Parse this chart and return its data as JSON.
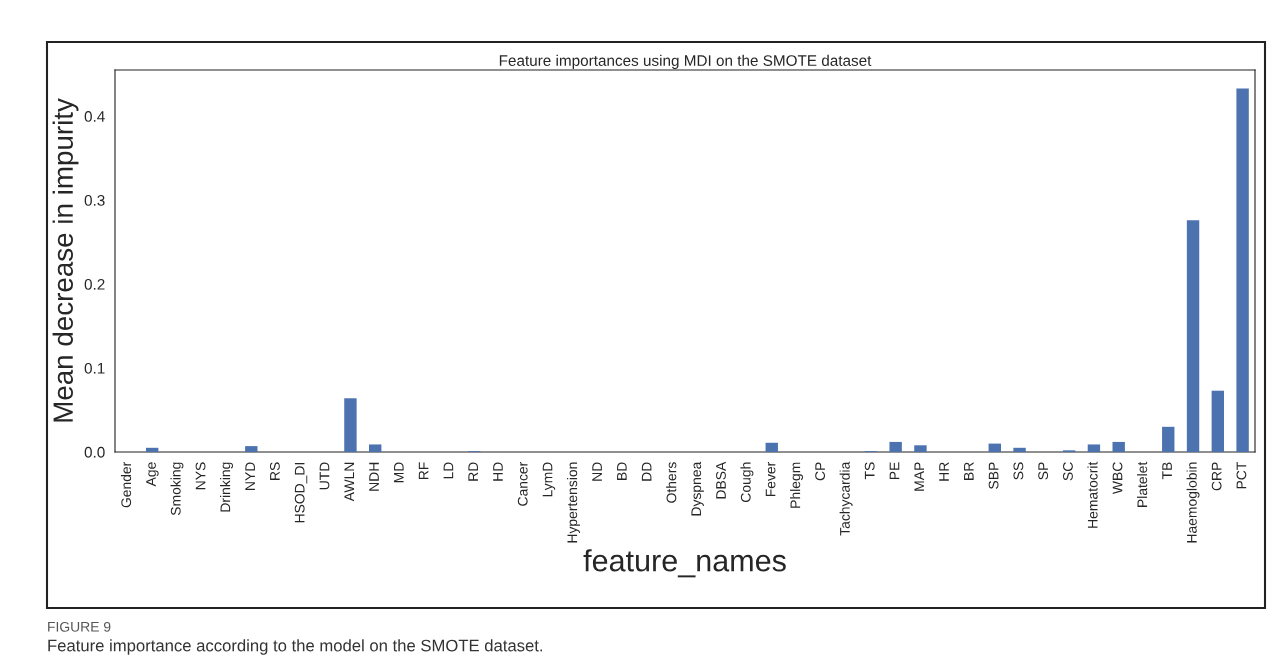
{
  "chart_data": {
    "type": "bar",
    "title": "Feature importances using MDI on the SMOTE dataset",
    "xlabel": "feature_names",
    "ylabel": "Mean decrease in impurity",
    "categories": [
      "Gender",
      "Age",
      "Smoking",
      "NYS",
      "Drinking",
      "NYD",
      "RS",
      "HSOD_DI",
      "UTD",
      "AWLN",
      "NDH",
      "MD",
      "RF",
      "LD",
      "RD",
      "HD",
      "Cancer",
      "LymD",
      "Hypertension",
      "ND",
      "BD",
      "DD",
      "Others",
      "Dyspnea",
      "DBSA",
      "Cough",
      "Fever",
      "Phlegm",
      "CP",
      "Tachycardia",
      "TS",
      "PE",
      "MAP",
      "HR",
      "BR",
      "SBP",
      "SS",
      "SP",
      "SC",
      "Hematocrit",
      "WBC",
      "Platelet",
      "TB",
      "Haemoglobin",
      "CRP",
      "PCT"
    ],
    "values": [
      0,
      0.005,
      0,
      0,
      0,
      0.007,
      0,
      0,
      0,
      0.064,
      0.009,
      0,
      0,
      0,
      0.001,
      0,
      0,
      0,
      0,
      0,
      0,
      0,
      0,
      0,
      0,
      0,
      0.011,
      0,
      0,
      0,
      0.001,
      0.012,
      0.008,
      0,
      0,
      0.01,
      0.005,
      0,
      0.002,
      0.009,
      0.012,
      0,
      0.03,
      0.276,
      0.073,
      0.433
    ],
    "color": "#4c72b0",
    "ylim": [
      0,
      0.455
    ],
    "yticks": [
      {
        "value": 0,
        "label": "0.0"
      },
      0.1,
      0.2,
      0.3,
      0.4
    ],
    "grid": false,
    "annotations": [
      "FIGURE 9",
      "Feature importance according to the model on the SMOTE dataset."
    ]
  }
}
